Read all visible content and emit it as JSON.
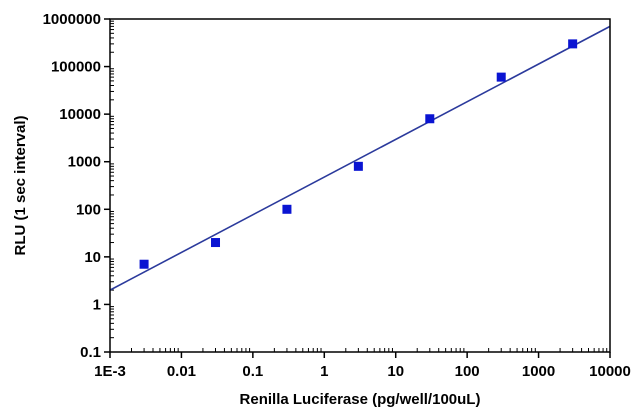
{
  "chart_data": {
    "type": "scatter",
    "xlabel": "Renilla Luciferase (pg/well/100uL)",
    "ylabel": "RLU (1 sec interval)",
    "xscale": "log",
    "yscale": "log",
    "xlim": [
      0.001,
      10000
    ],
    "ylim": [
      0.1,
      1000000
    ],
    "grid": false,
    "x_tick_labels": [
      "1E-3",
      "0.01",
      "0.1",
      "1",
      "10",
      "100",
      "1000",
      "10000"
    ],
    "y_tick_labels": [
      "0.1",
      "1",
      "10",
      "100",
      "1000",
      "10000",
      "100000",
      "1000000"
    ],
    "series": [
      {
        "x": [
          0.003,
          0.03,
          0.3,
          3,
          30,
          300,
          3000
        ],
        "y": [
          7,
          20,
          100,
          800,
          8000,
          60000,
          300000
        ]
      }
    ],
    "fit_line": {
      "x": [
        0.001,
        10000
      ],
      "y": [
        2,
        700000
      ]
    },
    "colors": {
      "points": "#0a14d2",
      "line": "#2b3a9c",
      "axis": "#000000"
    }
  }
}
